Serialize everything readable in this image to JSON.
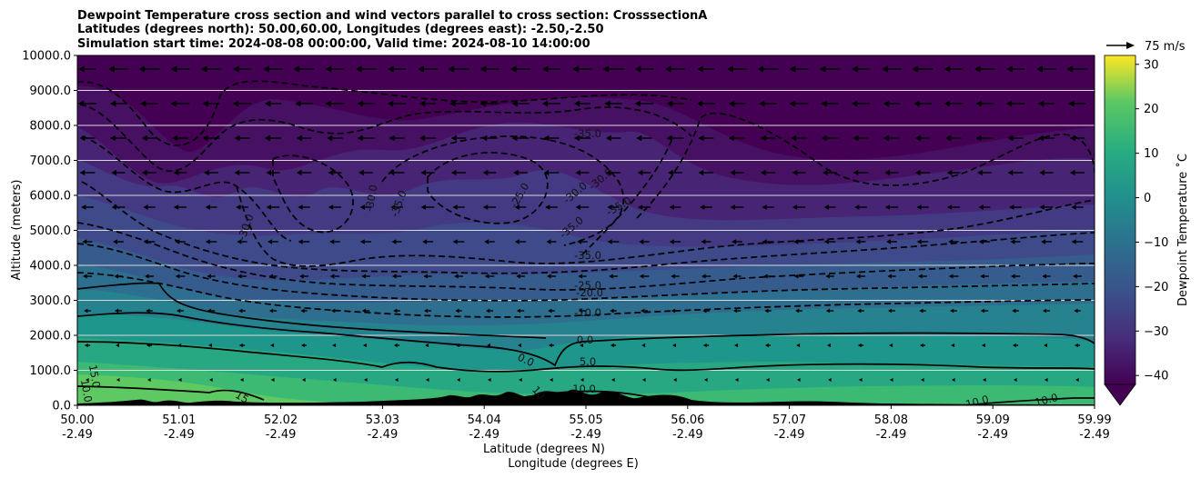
{
  "chart_data": {
    "type": "heatmap",
    "title_lines": [
      "Dewpoint Temperature cross section and wind vectors parallel to cross section: CrosssectionA",
      "Latitudes (degrees north): 50.00,60.00, Longitudes (degrees east): -2.50,-2.50",
      "Simulation start time: 2024-08-08 00:00:00, Valid time: 2024-08-10 14:00:00"
    ],
    "ylabel": "Altitude (meters)",
    "xlabel_lines": [
      "Latitude (degrees N)",
      "Longitude (degrees E)"
    ],
    "ylim": [
      0,
      10000
    ],
    "yticks": [
      "0.0",
      "1000.0",
      "2000.0",
      "3000.0",
      "4000.0",
      "5000.0",
      "6000.0",
      "7000.0",
      "8000.0",
      "9000.0",
      "10000.0"
    ],
    "xticks_lat": [
      "50.00",
      "51.01",
      "52.02",
      "53.03",
      "54.04",
      "55.05",
      "56.06",
      "57.07",
      "58.08",
      "59.09",
      "59.99"
    ],
    "xticks_lon": [
      "-2.49",
      "-2.49",
      "-2.49",
      "-2.49",
      "-2.49",
      "-2.49",
      "-2.49",
      "-2.49",
      "-2.49",
      "-2.49",
      "-2.49"
    ],
    "grid": "horizontal",
    "colorbar": {
      "label": "Dewpoint Temperature ˚C",
      "ticks": [
        "−40",
        "−30",
        "−20",
        "−10",
        "0",
        "10",
        "20",
        "30"
      ],
      "range": [
        -42,
        32
      ],
      "extend": "min",
      "colormap": "viridis"
    },
    "vector_key": {
      "label": "75 m/s"
    },
    "contour_labels": [
      {
        "text": "-35.0"
      },
      {
        "text": "-30.0"
      },
      {
        "text": "-35.0"
      },
      {
        "text": "-30.0"
      },
      {
        "text": "-25.0"
      },
      {
        "text": "-30.0"
      },
      {
        "text": "-30.0"
      },
      {
        "text": "-35.0"
      },
      {
        "text": "-35.0"
      },
      {
        "text": "-35.0"
      },
      {
        "text": "-25.0"
      },
      {
        "text": "-20.0"
      },
      {
        "text": "-10.0"
      },
      {
        "text": "0.0"
      },
      {
        "text": "0.0"
      },
      {
        "text": "5.0"
      },
      {
        "text": "10.0"
      },
      {
        "text": "15.0"
      },
      {
        "text": "10.0"
      },
      {
        "text": "15"
      },
      {
        "text": "10"
      },
      {
        "text": "10.0"
      },
      {
        "text": "10.0"
      }
    ],
    "colors": {
      "grid": "#d9d9d9",
      "terrain": "#000000",
      "contour": "#000000"
    }
  }
}
